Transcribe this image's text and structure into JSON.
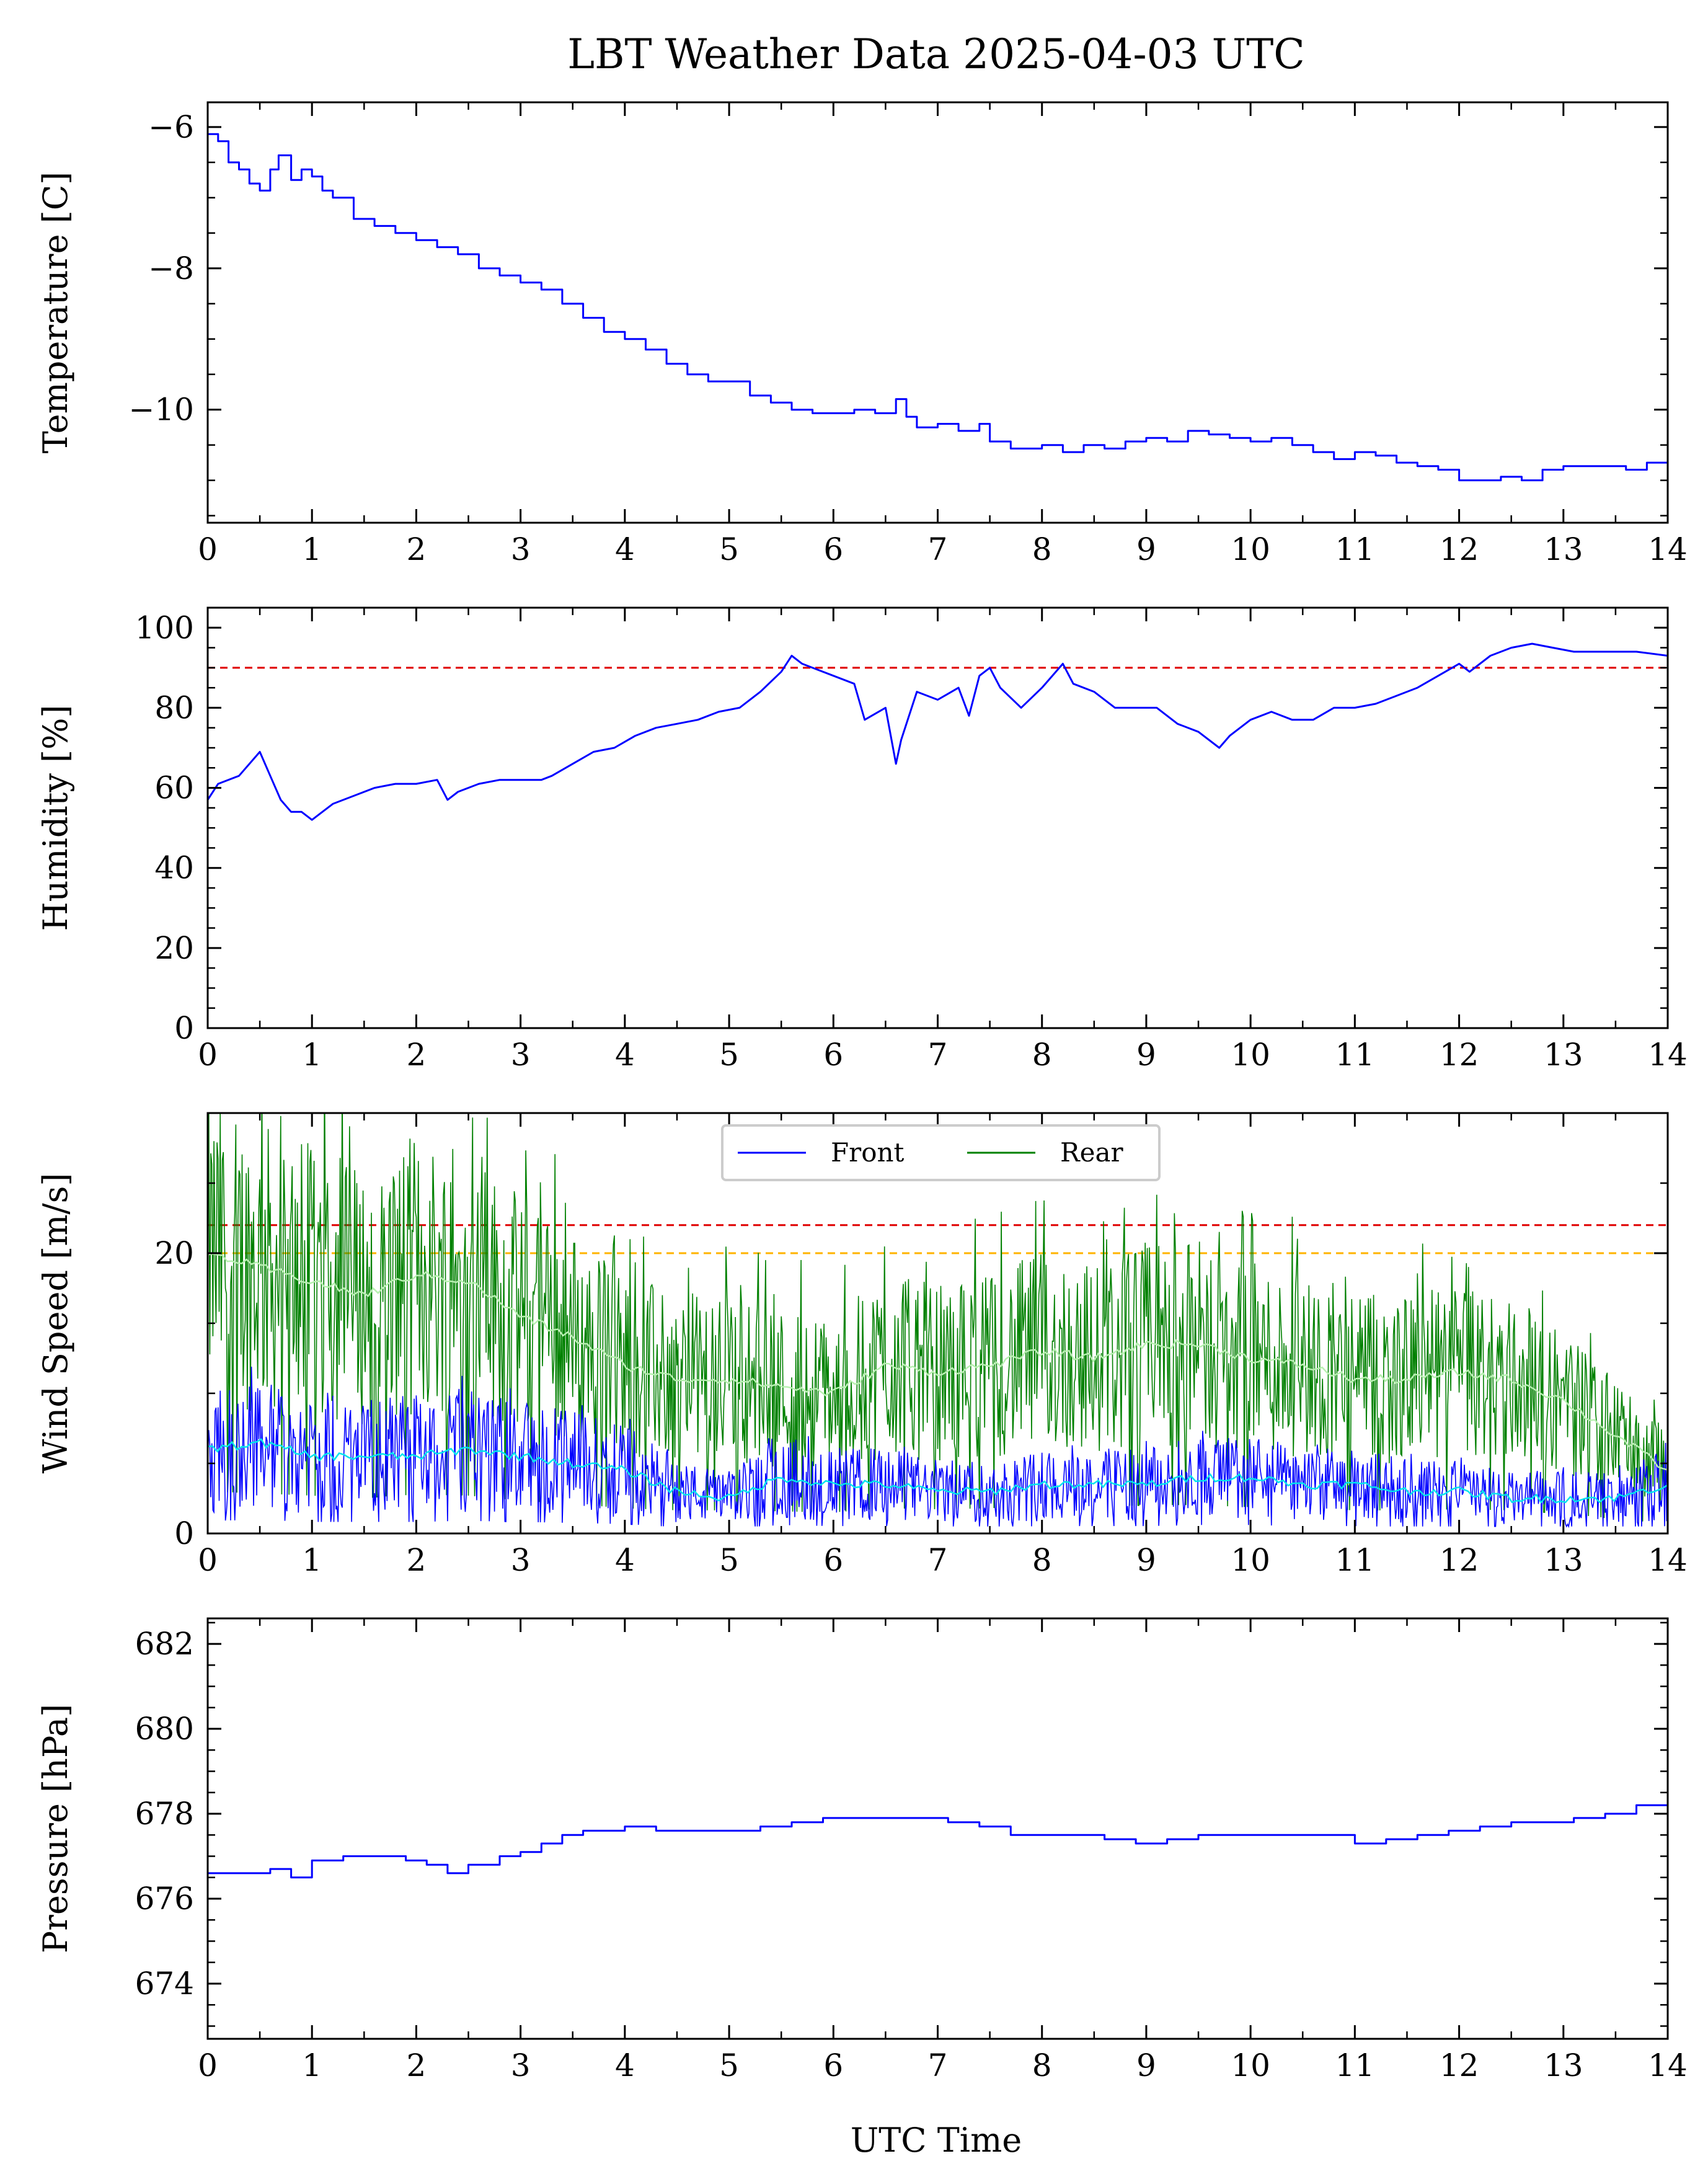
{
  "title": "LBT Weather Data 2025-04-03 UTC",
  "xlabel": "UTC Time",
  "colors": {
    "primary": "#0000ff",
    "rear": "#008000",
    "front_avg": "#00e5ee",
    "rear_avg": "#b7f0b0",
    "limit_red": "#e00000",
    "limit_orange": "#ffb300"
  },
  "chart_data": [
    {
      "id": "temperature",
      "type": "line",
      "ylabel": "Temperature [C]",
      "xlim": [
        0,
        14
      ],
      "ylim": [
        -11.6,
        -5.65
      ],
      "xticks": [
        0,
        1,
        2,
        3,
        4,
        5,
        6,
        7,
        8,
        9,
        10,
        11,
        12,
        13,
        14
      ],
      "yticks": [
        -10,
        -8,
        -6
      ],
      "ytick_labels": [
        "−10",
        "−8",
        "−6"
      ],
      "grid": false,
      "series": [
        {
          "color": "#0000ff",
          "style": "step",
          "x": [
            0,
            0.1,
            0.2,
            0.3,
            0.4,
            0.5,
            0.6,
            0.68,
            0.8,
            0.9,
            1.0,
            1.1,
            1.2,
            1.4,
            1.6,
            1.8,
            2.0,
            2.2,
            2.4,
            2.6,
            2.8,
            3.0,
            3.2,
            3.4,
            3.6,
            3.8,
            4.0,
            4.2,
            4.4,
            4.6,
            4.8,
            5.0,
            5.2,
            5.4,
            5.6,
            5.8,
            6.0,
            6.2,
            6.4,
            6.6,
            6.7,
            6.8,
            7.0,
            7.2,
            7.4,
            7.5,
            7.7,
            8.0,
            8.2,
            8.4,
            8.6,
            8.8,
            9.0,
            9.2,
            9.4,
            9.6,
            9.8,
            10.0,
            10.2,
            10.4,
            10.6,
            10.8,
            11.0,
            11.2,
            11.4,
            11.6,
            11.8,
            12.0,
            12.2,
            12.4,
            12.6,
            12.8,
            13.0,
            13.2,
            13.4,
            13.6,
            13.8,
            14.0
          ],
          "y": [
            -6.1,
            -6.2,
            -6.5,
            -6.6,
            -6.8,
            -6.9,
            -6.6,
            -6.4,
            -6.75,
            -6.6,
            -6.7,
            -6.9,
            -7.0,
            -7.3,
            -7.4,
            -7.5,
            -7.6,
            -7.7,
            -7.8,
            -8.0,
            -8.1,
            -8.2,
            -8.3,
            -8.5,
            -8.7,
            -8.9,
            -9.0,
            -9.15,
            -9.35,
            -9.5,
            -9.6,
            -9.6,
            -9.8,
            -9.9,
            -10.0,
            -10.05,
            -10.05,
            -10.0,
            -10.05,
            -9.85,
            -10.1,
            -10.25,
            -10.2,
            -10.3,
            -10.2,
            -10.45,
            -10.55,
            -10.5,
            -10.6,
            -10.5,
            -10.55,
            -10.45,
            -10.4,
            -10.45,
            -10.3,
            -10.35,
            -10.4,
            -10.45,
            -10.4,
            -10.5,
            -10.6,
            -10.7,
            -10.6,
            -10.65,
            -10.75,
            -10.8,
            -10.85,
            -11.0,
            -11.0,
            -10.95,
            -11.0,
            -10.85,
            -10.8,
            -10.8,
            -10.8,
            -10.85,
            -10.75,
            -10.6
          ]
        }
      ]
    },
    {
      "id": "humidity",
      "type": "line",
      "ylabel": "Humidity [%]",
      "xlim": [
        0,
        14
      ],
      "ylim": [
        0,
        105
      ],
      "xticks": [
        0,
        1,
        2,
        3,
        4,
        5,
        6,
        7,
        8,
        9,
        10,
        11,
        12,
        13,
        14
      ],
      "yticks": [
        0,
        20,
        40,
        60,
        80,
        100
      ],
      "ytick_labels": [
        "0",
        "20",
        "40",
        "60",
        "80",
        "100"
      ],
      "threshold": 90,
      "grid": false,
      "series": [
        {
          "color": "#0000ff",
          "x": [
            0,
            0.1,
            0.3,
            0.5,
            0.6,
            0.7,
            0.8,
            0.9,
            1.0,
            1.1,
            1.2,
            1.4,
            1.6,
            1.8,
            2.0,
            2.2,
            2.3,
            2.4,
            2.6,
            2.8,
            3.0,
            3.2,
            3.3,
            3.5,
            3.7,
            3.9,
            4.1,
            4.3,
            4.5,
            4.7,
            4.9,
            5.1,
            5.3,
            5.5,
            5.6,
            5.7,
            5.8,
            6.0,
            6.2,
            6.3,
            6.5,
            6.6,
            6.65,
            6.8,
            7.0,
            7.2,
            7.3,
            7.4,
            7.5,
            7.6,
            7.8,
            8.0,
            8.2,
            8.3,
            8.5,
            8.7,
            8.9,
            9.1,
            9.3,
            9.5,
            9.7,
            9.8,
            10.0,
            10.2,
            10.4,
            10.6,
            10.8,
            11.0,
            11.2,
            11.4,
            11.6,
            11.8,
            12.0,
            12.1,
            12.3,
            12.5,
            12.7,
            12.9,
            13.1,
            13.3,
            13.5,
            13.7,
            14.0
          ],
          "y": [
            57,
            61,
            63,
            69,
            63,
            57,
            54,
            54,
            52,
            54,
            56,
            58,
            60,
            61,
            61,
            62,
            57,
            59,
            61,
            62,
            62,
            62,
            63,
            66,
            69,
            70,
            73,
            75,
            76,
            77,
            79,
            80,
            84,
            89,
            93,
            91,
            90,
            88,
            86,
            77,
            80,
            66,
            72,
            84,
            82,
            85,
            78,
            88,
            90,
            85,
            80,
            85,
            91,
            86,
            84,
            80,
            80,
            80,
            76,
            74,
            70,
            73,
            77,
            79,
            77,
            77,
            80,
            80,
            81,
            83,
            85,
            88,
            91,
            89,
            93,
            95,
            96,
            95,
            94,
            94,
            94,
            94,
            93
          ]
        }
      ]
    },
    {
      "id": "wind",
      "type": "line",
      "ylabel": "Wind Speed [m/s]",
      "xlim": [
        0,
        14
      ],
      "ylim": [
        0,
        30
      ],
      "xticks": [
        0,
        1,
        2,
        3,
        4,
        5,
        6,
        7,
        8,
        9,
        10,
        11,
        12,
        13,
        14
      ],
      "yticks": [
        0,
        20
      ],
      "ytick_labels": [
        "0",
        "20"
      ],
      "thresholds": [
        22,
        20
      ],
      "legend": "top-center",
      "grid": false,
      "series": [
        {
          "name": "Front",
          "color": "#0000ff",
          "x": [
            0,
            0.5,
            1,
            1.5,
            2,
            2.5,
            3,
            3.5,
            4,
            4.5,
            5,
            5.5,
            6,
            6.5,
            7,
            7.5,
            8,
            8.5,
            9,
            9.5,
            10,
            10.5,
            11,
            11.5,
            12,
            12.5,
            13,
            13.5,
            14
          ],
          "y": [
            6,
            6.5,
            5.5,
            5.5,
            5.5,
            6,
            5.5,
            5,
            4.5,
            3,
            2.5,
            4,
            3.5,
            3.5,
            3,
            3,
            3.5,
            3.5,
            3.5,
            4,
            4,
            3.5,
            3.5,
            3,
            3,
            2.5,
            2.5,
            2.5,
            3.5
          ],
          "avg": [
            6,
            6.5,
            5.5,
            5.5,
            5.5,
            6,
            5.5,
            5,
            4.5,
            3,
            2.5,
            4,
            3.5,
            3.5,
            3,
            3,
            3.5,
            3.5,
            3.5,
            4,
            4,
            3.5,
            3.5,
            3,
            3,
            2.5,
            2.5,
            2.5,
            3.5
          ]
        },
        {
          "name": "Rear",
          "color": "#008000",
          "x": [
            0,
            0.5,
            1,
            1.5,
            2,
            2.5,
            3,
            3.5,
            4,
            4.5,
            5,
            5.5,
            6,
            6.5,
            7,
            7.5,
            8,
            8.5,
            9,
            9.5,
            10,
            10.5,
            11,
            11.5,
            12,
            12.5,
            13,
            13.5,
            14
          ],
          "y": [
            20,
            19,
            18,
            17,
            18.5,
            18,
            15.5,
            14,
            12,
            11,
            11,
            10.5,
            10,
            12,
            11.5,
            12,
            13,
            12.5,
            13.5,
            13.5,
            12.5,
            12,
            11,
            11,
            11.5,
            11,
            9.5,
            7,
            4.5
          ],
          "avg": [
            20,
            19,
            18,
            17,
            18.5,
            18,
            15.5,
            14,
            12,
            11,
            11,
            10.5,
            10,
            12,
            11.5,
            12,
            13,
            12.5,
            13.5,
            13.5,
            12.5,
            12,
            11,
            11,
            11.5,
            11,
            9.5,
            7,
            4.5
          ]
        }
      ]
    },
    {
      "id": "pressure",
      "type": "line",
      "ylabel": "Pressure [hPa]",
      "xlim": [
        0,
        14
      ],
      "ylim": [
        672.7,
        682.6
      ],
      "xticks": [
        0,
        1,
        2,
        3,
        4,
        5,
        6,
        7,
        8,
        9,
        10,
        11,
        12,
        13,
        14
      ],
      "yticks": [
        674,
        676,
        678,
        680,
        682
      ],
      "ytick_labels": [
        "674",
        "676",
        "678",
        "680",
        "682"
      ],
      "grid": false,
      "series": [
        {
          "color": "#0000ff",
          "style": "step",
          "x": [
            0,
            0.3,
            0.6,
            0.8,
            1.0,
            1.3,
            1.6,
            1.9,
            2.1,
            2.3,
            2.5,
            2.8,
            3.0,
            3.2,
            3.4,
            3.6,
            3.8,
            4.0,
            4.3,
            4.6,
            5.0,
            5.3,
            5.6,
            5.9,
            6.2,
            6.5,
            6.8,
            7.1,
            7.4,
            7.7,
            8.0,
            8.3,
            8.6,
            8.9,
            9.2,
            9.5,
            9.8,
            10.1,
            10.4,
            10.7,
            11.0,
            11.3,
            11.6,
            11.9,
            12.2,
            12.5,
            12.8,
            13.1,
            13.4,
            13.7,
            14.0
          ],
          "y": [
            676.6,
            676.6,
            676.7,
            676.5,
            676.9,
            677.0,
            677.0,
            676.9,
            676.8,
            676.6,
            676.8,
            677.0,
            677.1,
            677.3,
            677.5,
            677.6,
            677.6,
            677.7,
            677.6,
            677.6,
            677.6,
            677.7,
            677.8,
            677.9,
            677.9,
            677.9,
            677.9,
            677.8,
            677.7,
            677.5,
            677.5,
            677.5,
            677.4,
            677.3,
            677.4,
            677.5,
            677.5,
            677.5,
            677.5,
            677.5,
            677.3,
            677.4,
            677.5,
            677.6,
            677.7,
            677.8,
            677.8,
            677.9,
            678.0,
            678.2,
            678.3
          ]
        }
      ]
    }
  ]
}
